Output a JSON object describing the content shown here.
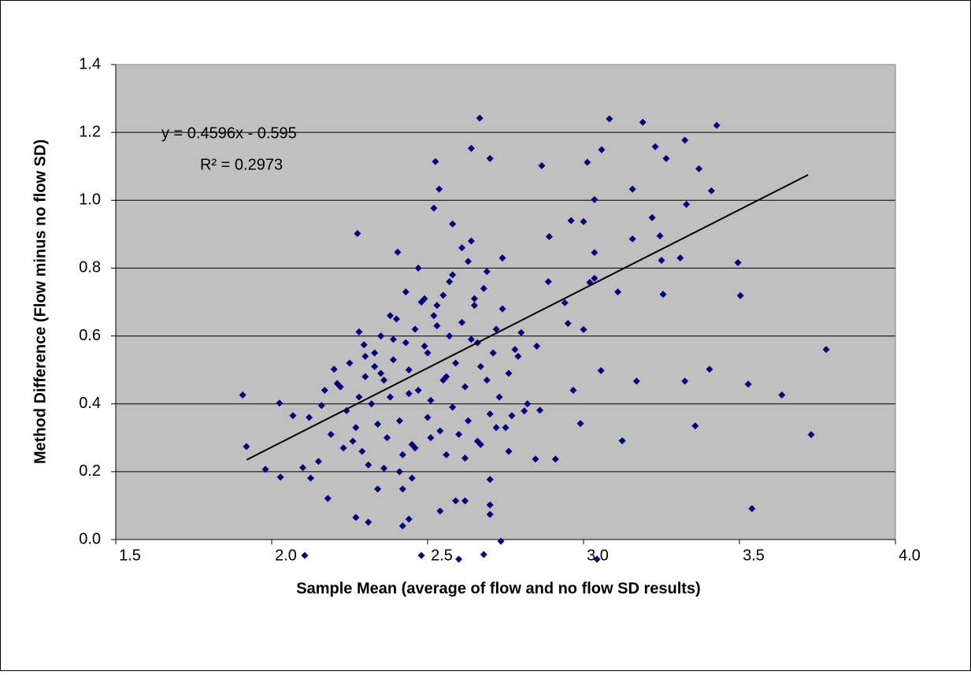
{
  "chart_data": {
    "type": "scatter",
    "x_label": "Sample Mean (average of flow and no flow SD results)",
    "y_label": "Method Difference (Flow minus no flow SD)",
    "annotations": [
      "y = 0.4596x - 0.595",
      "R² = 0.2973"
    ],
    "color": "#000080",
    "grid": true,
    "xlim": [
      1.5,
      4.0
    ],
    "ylim": [
      0,
      1.4
    ],
    "xticks": [
      1.5,
      {
        "value": 2,
        "label": "2.0"
      },
      2.5,
      {
        "value": 3,
        "label": "3.0"
      },
      3.5,
      {
        "value": 4,
        "label": "4.0"
      }
    ],
    "yticks": [
      {
        "value": 0,
        "label": "0.0"
      },
      0.2,
      0.4,
      0.6,
      0.8,
      {
        "value": 1,
        "label": "1.0"
      },
      1.2,
      1.4
    ],
    "x": [
      1.907,
      1.919,
      1.98,
      2.025,
      2.028,
      2.068,
      2.106,
      2.1,
      2.125,
      2.16,
      2.18,
      2.2,
      2.27,
      2.275,
      2.28,
      2.296,
      2.31,
      2.34,
      2.404,
      2.42,
      2.44,
      2.48,
      2.52,
      2.525,
      2.537,
      2.6,
      2.64,
      2.667,
      2.68,
      2.7,
      2.735,
      2.866,
      3.043,
      3.083,
      3.19,
      3.427,
      3.778,
      3.73,
      3.636,
      3.54,
      3.528,
      3.495,
      3.503,
      3.404,
      3.358,
      3.325,
      3.124,
      3.056,
      2.99,
      2.967,
      3.17,
      3.11,
      3.33,
      3.41,
      3.37,
      3.325,
      3.23,
      3.265,
      3.22,
      3.245,
      3.25,
      3.255,
      3.31,
      3.035,
      3.035,
      3.035,
      3.012,
      3.058,
      3.157,
      3.157,
      3.0,
      2.96,
      2.94,
      3.02,
      2.95,
      3.0,
      2.89,
      2.887,
      2.91,
      2.846,
      2.86,
      2.81,
      2.77,
      2.76,
      2.7,
      2.7,
      2.7,
      2.62,
      2.59,
      2.54,
      2.45,
      2.42,
      2.22,
      2.25,
      2.3,
      2.33,
      2.35,
      2.38,
      2.4,
      2.43,
      2.46,
      2.48,
      2.5,
      2.52,
      2.55,
      2.57,
      2.58,
      2.61,
      2.63,
      2.65,
      2.66,
      2.68,
      2.72,
      2.74,
      2.78,
      2.8,
      2.24,
      2.27,
      2.32,
      2.36,
      2.39,
      2.41,
      2.44,
      2.47,
      2.49,
      2.51,
      2.53,
      2.56,
      2.59,
      2.62,
      2.64,
      2.67,
      2.69,
      2.71,
      2.73,
      2.76,
      2.79,
      2.82,
      2.85,
      2.26,
      2.29,
      2.34,
      2.37,
      2.42,
      2.45,
      2.5,
      2.54,
      2.58,
      2.6,
      2.63,
      2.66,
      2.7,
      2.75,
      2.21,
      2.28,
      2.33,
      2.38,
      2.43,
      2.47,
      2.53,
      2.57,
      2.61,
      2.65,
      2.69,
      2.74,
      2.15,
      2.19,
      2.23,
      2.31,
      2.36,
      2.41,
      2.46,
      2.51,
      2.56,
      2.62,
      2.67,
      2.72,
      2.12,
      2.17,
      2.35,
      2.44,
      2.55,
      2.64,
      2.58,
      2.49,
      2.39,
      2.3
    ],
    "values": [
      0.426,
      0.274,
      0.207,
      0.402,
      0.184,
      0.365,
      -0.047,
      0.212,
      0.181,
      0.395,
      0.121,
      0.502,
      0.065,
      0.902,
      0.612,
      0.574,
      0.051,
      0.149,
      0.847,
      0.04,
      0.06,
      -0.047,
      0.977,
      1.114,
      1.033,
      -0.058,
      1.153,
      1.242,
      -0.044,
      1.123,
      -0.005,
      1.102,
      -0.058,
      1.24,
      1.23,
      1.221,
      0.56,
      0.309,
      0.426,
      0.091,
      0.458,
      0.816,
      0.719,
      0.502,
      0.335,
      0.467,
      0.291,
      0.498,
      0.342,
      0.44,
      0.467,
      0.73,
      0.988,
      1.028,
      1.093,
      1.177,
      1.158,
      1.123,
      0.949,
      0.895,
      0.823,
      0.723,
      0.83,
      0.77,
      0.846,
      1.002,
      1.112,
      1.149,
      1.033,
      0.886,
      0.937,
      0.94,
      0.698,
      0.758,
      0.637,
      0.619,
      0.893,
      0.76,
      0.237,
      0.237,
      0.381,
      0.379,
      0.365,
      0.26,
      0.177,
      0.102,
      0.074,
      0.114,
      0.114,
      0.084,
      0.181,
      0.149,
      0.45,
      0.52,
      0.48,
      0.55,
      0.6,
      0.42,
      0.65,
      0.58,
      0.62,
      0.7,
      0.55,
      0.66,
      0.72,
      0.6,
      0.78,
      0.64,
      0.82,
      0.69,
      0.58,
      0.74,
      0.62,
      0.68,
      0.56,
      0.61,
      0.38,
      0.33,
      0.4,
      0.47,
      0.53,
      0.35,
      0.5,
      0.44,
      0.57,
      0.41,
      0.63,
      0.48,
      0.52,
      0.45,
      0.59,
      0.51,
      0.47,
      0.55,
      0.42,
      0.49,
      0.54,
      0.4,
      0.57,
      0.29,
      0.26,
      0.34,
      0.3,
      0.25,
      0.28,
      0.36,
      0.32,
      0.39,
      0.31,
      0.35,
      0.29,
      0.37,
      0.33,
      0.46,
      0.42,
      0.51,
      0.66,
      0.73,
      0.8,
      0.69,
      0.76,
      0.86,
      0.71,
      0.79,
      0.83,
      0.23,
      0.31,
      0.27,
      0.22,
      0.21,
      0.2,
      0.27,
      0.3,
      0.25,
      0.24,
      0.28,
      0.33,
      0.36,
      0.44,
      0.49,
      0.43,
      0.47,
      0.88,
      0.93,
      0.71,
      0.59,
      0.54
    ],
    "trendline": {
      "x": [
        1.92,
        3.72
      ],
      "values": [
        0.235,
        1.075
      ]
    }
  }
}
